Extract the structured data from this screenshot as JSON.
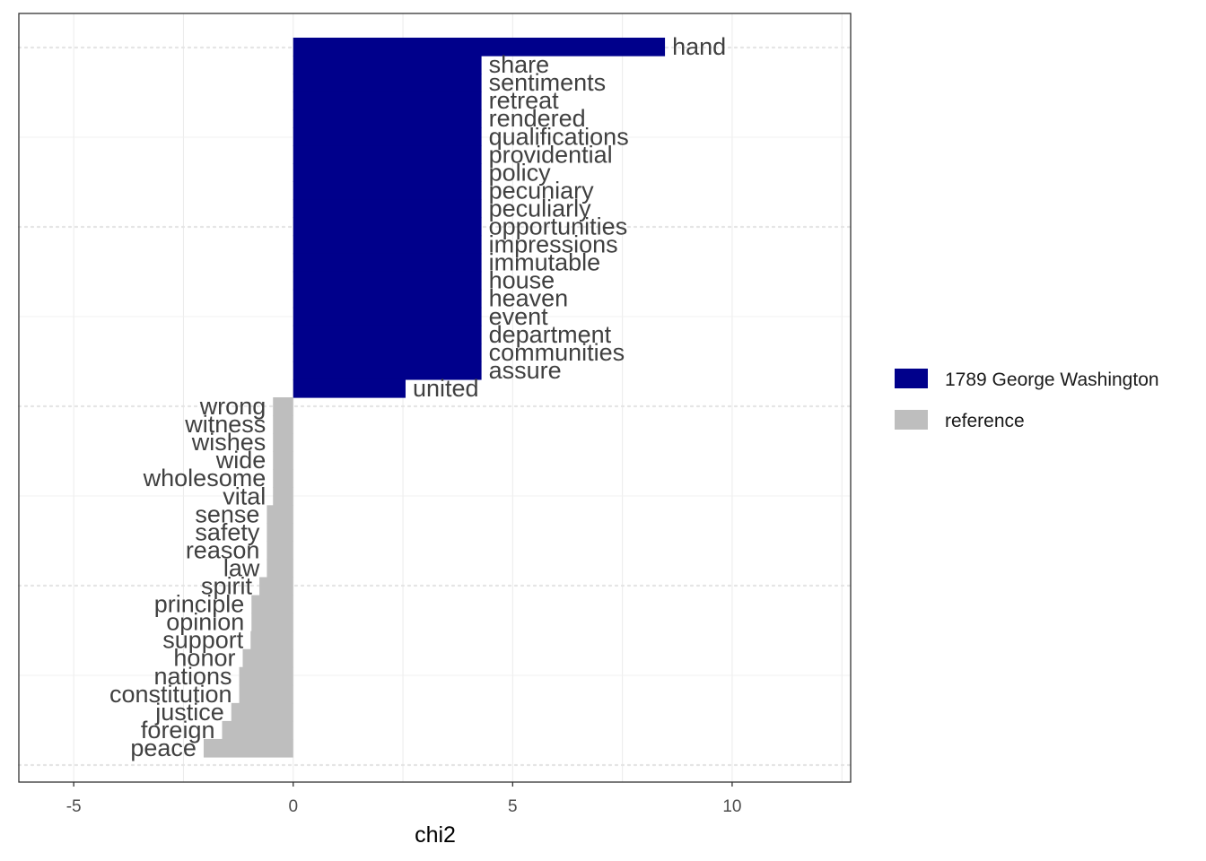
{
  "chart_data": {
    "type": "bar",
    "orientation": "horizontal",
    "xlabel": "chi2",
    "ylabel": "",
    "xlim": [
      -6.25,
      12.7
    ],
    "xticks": [
      -5,
      0,
      5,
      10
    ],
    "xtick_labels": [
      "-5",
      "0",
      "5",
      "10"
    ],
    "grid": true,
    "legend_position": "right",
    "colors": {
      "target": "#00008B",
      "reference": "#BEBEBE"
    },
    "series": [
      {
        "name": "1789 George Washington",
        "key": "target"
      },
      {
        "name": "reference",
        "key": "reference"
      }
    ],
    "bars": [
      {
        "label": "hand",
        "value": 8.47,
        "group": "target"
      },
      {
        "label": "share",
        "value": 4.29,
        "group": "target"
      },
      {
        "label": "sentiments",
        "value": 4.29,
        "group": "target"
      },
      {
        "label": "retreat",
        "value": 4.29,
        "group": "target"
      },
      {
        "label": "rendered",
        "value": 4.29,
        "group": "target"
      },
      {
        "label": "qualifications",
        "value": 4.29,
        "group": "target"
      },
      {
        "label": "providential",
        "value": 4.29,
        "group": "target"
      },
      {
        "label": "policy",
        "value": 4.29,
        "group": "target"
      },
      {
        "label": "pecuniary",
        "value": 4.29,
        "group": "target"
      },
      {
        "label": "peculiarly",
        "value": 4.29,
        "group": "target"
      },
      {
        "label": "opportunities",
        "value": 4.29,
        "group": "target"
      },
      {
        "label": "impressions",
        "value": 4.29,
        "group": "target"
      },
      {
        "label": "immutable",
        "value": 4.29,
        "group": "target"
      },
      {
        "label": "house",
        "value": 4.29,
        "group": "target"
      },
      {
        "label": "heaven",
        "value": 4.29,
        "group": "target"
      },
      {
        "label": "event",
        "value": 4.29,
        "group": "target"
      },
      {
        "label": "department",
        "value": 4.29,
        "group": "target"
      },
      {
        "label": "communities",
        "value": 4.29,
        "group": "target"
      },
      {
        "label": "assure",
        "value": 4.29,
        "group": "target"
      },
      {
        "label": "united",
        "value": 2.56,
        "group": "target"
      },
      {
        "label": "wrong",
        "value": -0.46,
        "group": "reference"
      },
      {
        "label": "witness",
        "value": -0.46,
        "group": "reference"
      },
      {
        "label": "wishes",
        "value": -0.46,
        "group": "reference"
      },
      {
        "label": "wide",
        "value": -0.46,
        "group": "reference"
      },
      {
        "label": "wholesome",
        "value": -0.46,
        "group": "reference"
      },
      {
        "label": "vital",
        "value": -0.46,
        "group": "reference"
      },
      {
        "label": "sense",
        "value": -0.6,
        "group": "reference"
      },
      {
        "label": "safety",
        "value": -0.6,
        "group": "reference"
      },
      {
        "label": "reason",
        "value": -0.6,
        "group": "reference"
      },
      {
        "label": "law",
        "value": -0.6,
        "group": "reference"
      },
      {
        "label": "spirit",
        "value": -0.77,
        "group": "reference"
      },
      {
        "label": "principle",
        "value": -0.95,
        "group": "reference"
      },
      {
        "label": "opinion",
        "value": -0.95,
        "group": "reference"
      },
      {
        "label": "support",
        "value": -0.97,
        "group": "reference"
      },
      {
        "label": "honor",
        "value": -1.15,
        "group": "reference"
      },
      {
        "label": "nations",
        "value": -1.23,
        "group": "reference"
      },
      {
        "label": "constitution",
        "value": -1.23,
        "group": "reference"
      },
      {
        "label": "justice",
        "value": -1.41,
        "group": "reference"
      },
      {
        "label": "foreign",
        "value": -1.62,
        "group": "reference"
      },
      {
        "label": "peace",
        "value": -2.04,
        "group": "reference"
      }
    ]
  }
}
